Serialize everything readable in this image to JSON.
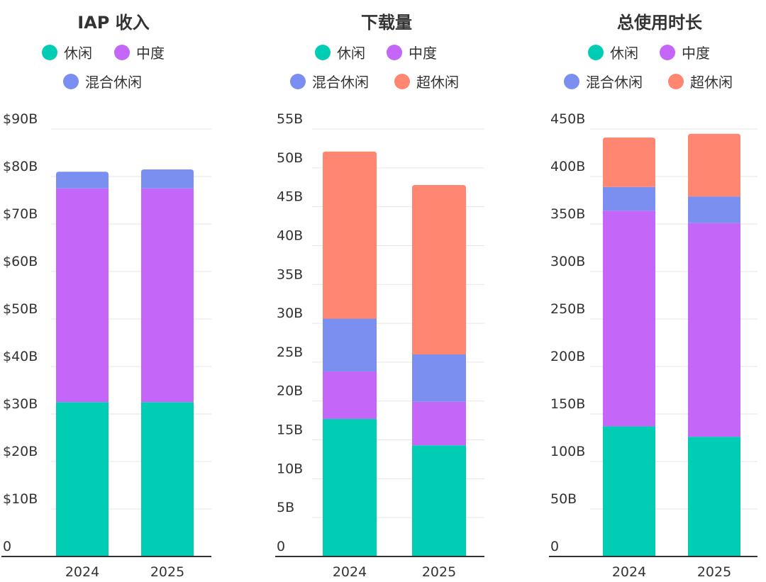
{
  "colors": {
    "休闲": "#00cdb4",
    "中度": "#c466f8",
    "混合休闲": "#7a8ff0",
    "超休闲": "#ff8670"
  },
  "chart_data": [
    {
      "type": "bar",
      "stacked": true,
      "title": "IAP 收入",
      "categories": [
        "2024",
        "2025"
      ],
      "legend": [
        "休闲",
        "中度",
        "混合休闲"
      ],
      "series": [
        {
          "name": "休闲",
          "values": [
            32.5,
            32.5
          ]
        },
        {
          "name": "中度",
          "values": [
            45,
            45
          ]
        },
        {
          "name": "混合休闲",
          "values": [
            3.5,
            4
          ]
        }
      ],
      "ylim": [
        0,
        90
      ],
      "yticks": [
        0,
        10,
        20,
        30,
        40,
        50,
        60,
        70,
        80,
        90
      ],
      "ytick_labels": [
        "0",
        "$10B",
        "$20B",
        "$30B",
        "$40B",
        "$50B",
        "$60B",
        "$70B",
        "$80B",
        "$90B"
      ],
      "xlabel": "",
      "ylabel": ""
    },
    {
      "type": "bar",
      "stacked": true,
      "title": "下载量",
      "categories": [
        "2024",
        "2025"
      ],
      "legend": [
        "休闲",
        "中度",
        "混合休闲",
        "超休闲"
      ],
      "series": [
        {
          "name": "休闲",
          "values": [
            17.7,
            14.3
          ]
        },
        {
          "name": "中度",
          "values": [
            6.1,
            5.6
          ]
        },
        {
          "name": "混合休闲",
          "values": [
            6.8,
            6.1
          ]
        },
        {
          "name": "超休闲",
          "values": [
            21.5,
            21.8
          ]
        }
      ],
      "ylim": [
        0,
        55
      ],
      "yticks": [
        0,
        5,
        10,
        15,
        20,
        25,
        30,
        35,
        40,
        45,
        50,
        55
      ],
      "ytick_labels": [
        "0",
        "5B",
        "10B",
        "15B",
        "20B",
        "25B",
        "30B",
        "35B",
        "40B",
        "45B",
        "50B",
        "55B"
      ],
      "xlabel": "",
      "ylabel": ""
    },
    {
      "type": "bar",
      "stacked": true,
      "title": "总使用时长",
      "categories": [
        "2024",
        "2025"
      ],
      "legend": [
        "休闲",
        "中度",
        "混合休闲",
        "超休闲"
      ],
      "series": [
        {
          "name": "休闲",
          "values": [
            137,
            126
          ]
        },
        {
          "name": "中度",
          "values": [
            227,
            225
          ]
        },
        {
          "name": "混合休闲",
          "values": [
            25,
            28
          ]
        },
        {
          "name": "超休闲",
          "values": [
            52,
            66
          ]
        }
      ],
      "ylim": [
        0,
        450
      ],
      "yticks": [
        0,
        50,
        100,
        150,
        200,
        250,
        300,
        350,
        400,
        450
      ],
      "ytick_labels": [
        "0",
        "50B",
        "100B",
        "150B",
        "200B",
        "250B",
        "300B",
        "350B",
        "400B",
        "450B"
      ],
      "xlabel": "",
      "ylabel": ""
    }
  ]
}
